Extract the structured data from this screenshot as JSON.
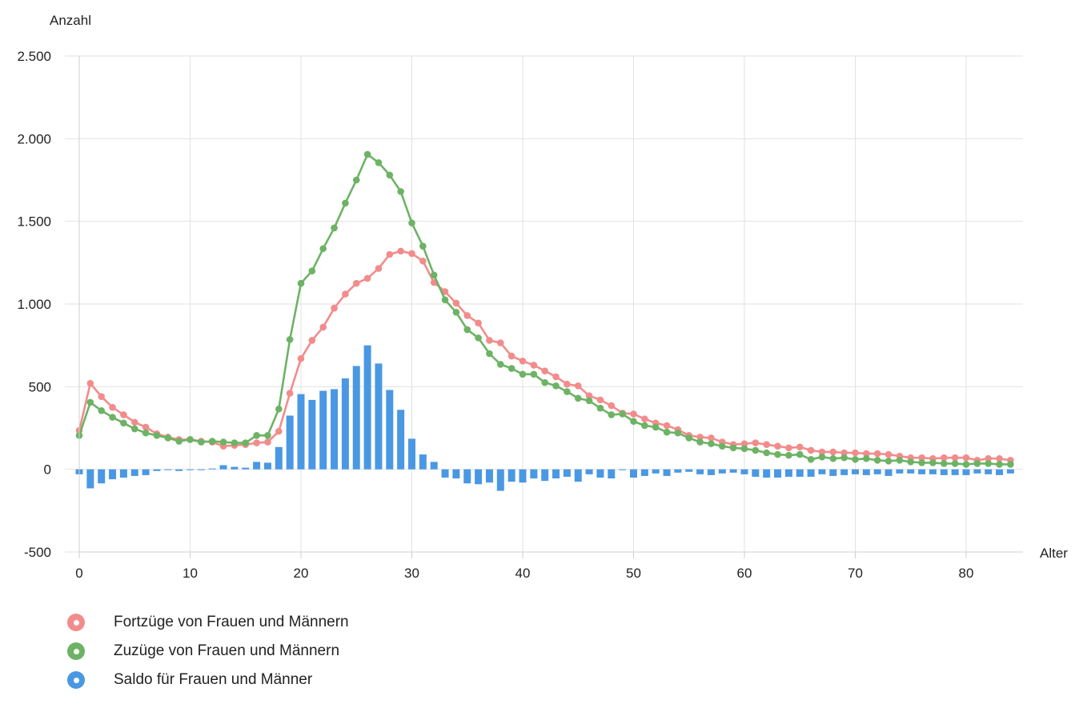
{
  "chart_data": {
    "type": "bar+line",
    "ylabel": "Anzahl",
    "xlabel": "Alter",
    "ylim": [
      -500,
      2500
    ],
    "xlim": [
      0,
      84
    ],
    "y_ticks": [
      2500,
      2000,
      1500,
      1000,
      500,
      0,
      -500
    ],
    "y_tick_labels": [
      "2.500",
      "2.000",
      "1.500",
      "1.000",
      "500",
      "0",
      "-500"
    ],
    "x_ticks": [
      0,
      10,
      20,
      30,
      40,
      50,
      60,
      70,
      80
    ],
    "x_tick_labels": [
      "0",
      "10",
      "20",
      "30",
      "40",
      "50",
      "60",
      "70",
      "80"
    ],
    "grid": true,
    "legend_position": "bottom-left",
    "x": [
      0,
      1,
      2,
      3,
      4,
      5,
      6,
      7,
      8,
      9,
      10,
      11,
      12,
      13,
      14,
      15,
      16,
      17,
      18,
      19,
      20,
      21,
      22,
      23,
      24,
      25,
      26,
      27,
      28,
      29,
      30,
      31,
      32,
      33,
      34,
      35,
      36,
      37,
      38,
      39,
      40,
      41,
      42,
      43,
      44,
      45,
      46,
      47,
      48,
      49,
      50,
      51,
      52,
      53,
      54,
      55,
      56,
      57,
      58,
      59,
      60,
      61,
      62,
      63,
      64,
      65,
      66,
      67,
      68,
      69,
      70,
      71,
      72,
      73,
      74,
      75,
      76,
      77,
      78,
      79,
      80,
      81,
      82,
      83,
      84
    ],
    "series": [
      {
        "name": "Fortzüge von Frauen und Männern",
        "kind": "line",
        "color": "#f28c8c",
        "values": [
          235,
          520,
          440,
          375,
          330,
          285,
          255,
          215,
          195,
          180,
          180,
          170,
          165,
          140,
          145,
          150,
          160,
          165,
          230,
          460,
          670,
          780,
          860,
          975,
          1060,
          1125,
          1155,
          1215,
          1300,
          1320,
          1305,
          1260,
          1130,
          1075,
          1005,
          930,
          885,
          780,
          765,
          685,
          655,
          630,
          595,
          560,
          515,
          505,
          445,
          420,
          385,
          340,
          335,
          305,
          280,
          265,
          240,
          205,
          195,
          190,
          165,
          150,
          155,
          160,
          150,
          140,
          130,
          135,
          115,
          105,
          105,
          100,
          100,
          95,
          95,
          90,
          80,
          70,
          70,
          65,
          70,
          70,
          70,
          55,
          65,
          65,
          55
        ]
      },
      {
        "name": "Zuzüge von Frauen und Männern",
        "kind": "line",
        "color": "#6db365",
        "values": [
          205,
          405,
          355,
          315,
          280,
          245,
          220,
          205,
          190,
          170,
          180,
          165,
          170,
          165,
          160,
          160,
          205,
          205,
          365,
          785,
          1125,
          1200,
          1335,
          1460,
          1610,
          1750,
          1905,
          1855,
          1780,
          1680,
          1490,
          1350,
          1175,
          1025,
          950,
          845,
          795,
          700,
          635,
          610,
          575,
          575,
          525,
          505,
          470,
          430,
          415,
          370,
          330,
          335,
          290,
          265,
          255,
          225,
          220,
          190,
          165,
          155,
          140,
          130,
          125,
          115,
          100,
          90,
          85,
          90,
          60,
          75,
          65,
          70,
          60,
          65,
          55,
          50,
          55,
          45,
          40,
          40,
          35,
          35,
          30,
          35,
          35,
          30,
          30
        ]
      },
      {
        "name": "Saldo für Frauen und Männer",
        "kind": "bar",
        "color": "#4a98e3",
        "values": [
          -30,
          -115,
          -85,
          -60,
          -50,
          -40,
          -35,
          -10,
          -5,
          -10,
          0,
          -5,
          5,
          25,
          15,
          10,
          45,
          40,
          135,
          325,
          455,
          420,
          475,
          485,
          550,
          625,
          750,
          640,
          480,
          360,
          185,
          90,
          45,
          -50,
          -55,
          -85,
          -90,
          -80,
          -130,
          -75,
          -80,
          -55,
          -70,
          -55,
          -45,
          -75,
          -30,
          -50,
          -55,
          -5,
          -50,
          -40,
          -25,
          -40,
          -20,
          -15,
          -30,
          -35,
          -25,
          -20,
          -30,
          -45,
          -50,
          -50,
          -45,
          -45,
          -45,
          -30,
          -40,
          -35,
          -30,
          -35,
          -30,
          -40,
          -25,
          -25,
          -30,
          -30,
          -35,
          -35,
          -35,
          -25,
          -30,
          -35,
          -25
        ]
      }
    ]
  }
}
